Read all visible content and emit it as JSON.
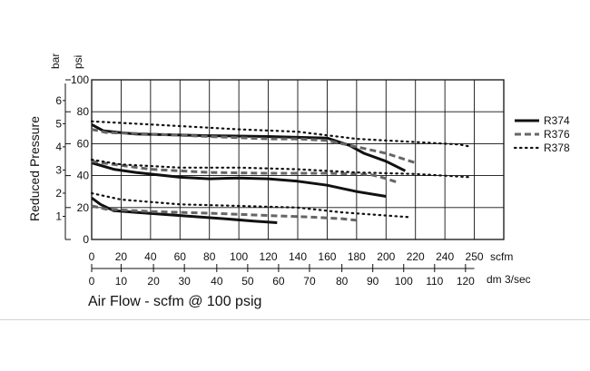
{
  "chart_data": {
    "type": "line",
    "xlabel": "Air Flow - scfm @ 100 psig",
    "ylabel": "Reduced Pressure",
    "x_units": [
      "scfm",
      "dm 3/sec"
    ],
    "y_units": [
      "bar",
      "psi"
    ],
    "xlim": [
      0,
      280
    ],
    "ylim": [
      0,
      100
    ],
    "x_ticks_scfm": [
      "0",
      "20",
      "40",
      "60",
      "80",
      "100",
      "120",
      "140",
      "160",
      "180",
      "200",
      "220",
      "240",
      "250"
    ],
    "x_ticks_dm3": [
      {
        "label": "0",
        "scfm": 0
      },
      {
        "label": "10",
        "scfm": 20
      },
      {
        "label": "20",
        "scfm": 42
      },
      {
        "label": "30",
        "scfm": 63
      },
      {
        "label": "40",
        "scfm": 85
      },
      {
        "label": "50",
        "scfm": 106
      },
      {
        "label": "60",
        "scfm": 127
      },
      {
        "label": "70",
        "scfm": 148
      },
      {
        "label": "80",
        "scfm": 170
      },
      {
        "label": "90",
        "scfm": 191
      },
      {
        "label": "100",
        "scfm": 212
      },
      {
        "label": "110",
        "scfm": 233
      },
      {
        "label": "120",
        "scfm": 254
      }
    ],
    "y_ticks_psi": [
      "0",
      "20",
      "40",
      "60",
      "80",
      "100"
    ],
    "y_ticks_bar": [
      "1",
      "2",
      "3",
      "4",
      "5",
      "6"
    ],
    "grid": true,
    "legend_position": "right",
    "series": [
      {
        "name": "R374",
        "color": "#111111",
        "style": "solid",
        "curves": [
          [
            [
              0,
              72
            ],
            [
              8,
              68
            ],
            [
              30,
              66
            ],
            [
              80,
              65
            ],
            [
              120,
              64.5
            ],
            [
              160,
              63.5
            ],
            [
              175,
              59
            ],
            [
              185,
              54
            ],
            [
              200,
              49
            ],
            [
              213,
              43
            ]
          ],
          [
            [
              0,
              48
            ],
            [
              15,
              44
            ],
            [
              30,
              42
            ],
            [
              60,
              39
            ],
            [
              80,
              38
            ],
            [
              100,
              38.5
            ],
            [
              120,
              38
            ],
            [
              140,
              36.5
            ],
            [
              160,
              34
            ],
            [
              180,
              30
            ],
            [
              200,
              27
            ]
          ],
          [
            [
              0,
              26
            ],
            [
              6,
              22
            ],
            [
              15,
              18
            ],
            [
              30,
              17
            ],
            [
              60,
              15
            ],
            [
              90,
              13
            ],
            [
              110,
              11.5
            ],
            [
              126,
              10.5
            ]
          ]
        ]
      },
      {
        "name": "R376",
        "color": "#666666",
        "style": "dashed",
        "curves": [
          [
            [
              0,
              69
            ],
            [
              10,
              67
            ],
            [
              40,
              66
            ],
            [
              80,
              64.5
            ],
            [
              120,
              63
            ],
            [
              140,
              63
            ],
            [
              160,
              62
            ],
            [
              180,
              58
            ],
            [
              200,
              54
            ],
            [
              220,
              48
            ]
          ],
          [
            [
              0,
              49
            ],
            [
              15,
              47
            ],
            [
              40,
              44
            ],
            [
              80,
              42
            ],
            [
              120,
              41.5
            ],
            [
              160,
              41.5
            ],
            [
              180,
              41
            ],
            [
              190,
              40.5
            ],
            [
              197,
              39
            ],
            [
              207,
              36
            ]
          ],
          [
            [
              0,
              21
            ],
            [
              10,
              19
            ],
            [
              40,
              17.5
            ],
            [
              80,
              16.5
            ],
            [
              120,
              15
            ],
            [
              150,
              14
            ],
            [
              170,
              13
            ],
            [
              180,
              12
            ]
          ]
        ]
      },
      {
        "name": "R378",
        "color": "#111111",
        "style": "dotted",
        "curves": [
          [
            [
              0,
              74
            ],
            [
              20,
              73
            ],
            [
              60,
              71
            ],
            [
              100,
              69
            ],
            [
              140,
              67.5
            ],
            [
              180,
              63
            ],
            [
              220,
              61
            ],
            [
              250,
              59.5
            ],
            [
              258,
              58
            ]
          ],
          [
            [
              0,
              50
            ],
            [
              20,
              47
            ],
            [
              60,
              45
            ],
            [
              100,
              45
            ],
            [
              140,
              44
            ],
            [
              180,
              42
            ],
            [
              220,
              41
            ],
            [
              258,
              39
            ]
          ],
          [
            [
              0,
              29
            ],
            [
              20,
              25
            ],
            [
              60,
              22
            ],
            [
              100,
              21
            ],
            [
              140,
              20
            ],
            [
              170,
              17
            ],
            [
              200,
              15
            ],
            [
              216,
              14
            ]
          ]
        ]
      }
    ]
  }
}
